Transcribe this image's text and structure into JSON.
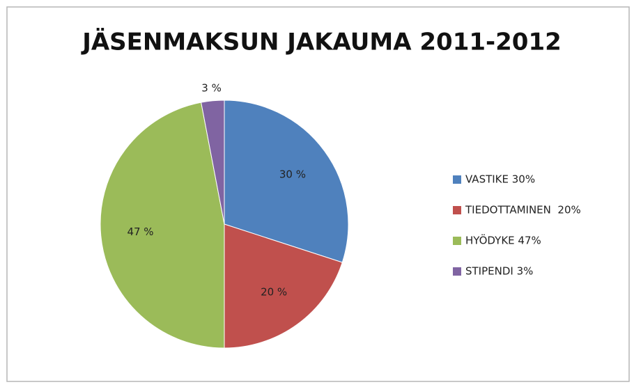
{
  "chart_data": {
    "type": "pie",
    "title": "JÄSENMAKSUN JAKAUMA 2011-2012",
    "categories": [
      "VASTIKE 30%",
      "TIEDOTTAMINEN  20%",
      "HYÖDYKE 47%",
      "STIPENDI 3%"
    ],
    "values": [
      30,
      20,
      47,
      3
    ],
    "value_labels": [
      "30 %",
      "20 %",
      "47 %",
      "3 %"
    ],
    "colors": [
      "#4f81bd",
      "#c0504d",
      "#9bbb59",
      "#8064a2"
    ],
    "legend": "right"
  }
}
